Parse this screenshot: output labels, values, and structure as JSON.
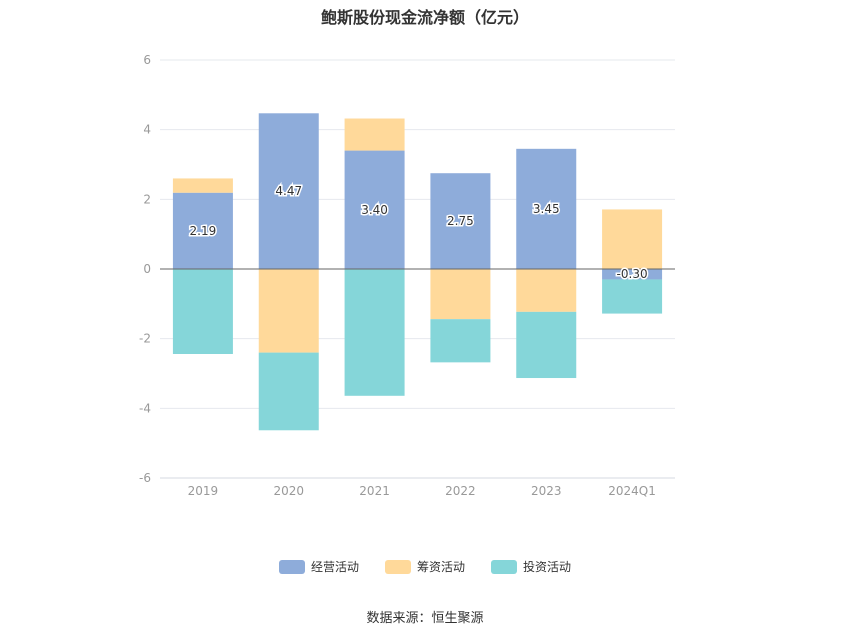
{
  "title": "鲍斯股份现金流净额（亿元）",
  "source": "数据来源：恒生聚源",
  "chart_data": {
    "type": "bar",
    "stacked": true,
    "categories": [
      "2019",
      "2020",
      "2021",
      "2022",
      "2023",
      "2024Q1"
    ],
    "ylim": [
      -6,
      6
    ],
    "yticks": [
      6,
      4,
      2,
      0,
      -2,
      -4,
      -6
    ],
    "grid": true,
    "legend_position": "bottom",
    "series": [
      {
        "name": "经营活动",
        "color": "#8EACDA",
        "values": [
          2.19,
          4.47,
          3.4,
          2.75,
          3.45,
          -0.3
        ]
      },
      {
        "name": "筹资活动",
        "color": "#FFD99A",
        "values": [
          0.41,
          -2.4,
          0.92,
          -1.44,
          -1.23,
          1.71
        ]
      },
      {
        "name": "投资活动",
        "color": "#85D6D9",
        "values": [
          -2.44,
          -2.23,
          -3.64,
          -1.24,
          -1.9,
          -0.98
        ]
      }
    ],
    "data_labels": [
      "2.19",
      "4.47",
      "3.40",
      "2.75",
      "3.45",
      "-0.30"
    ]
  }
}
